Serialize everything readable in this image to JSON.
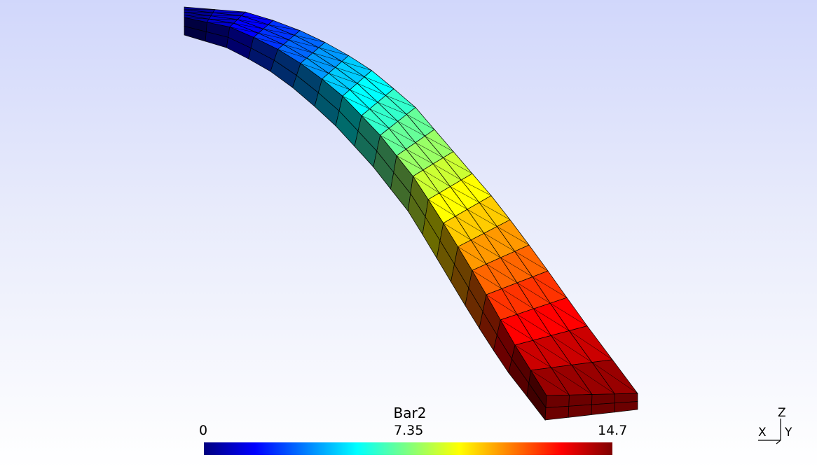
{
  "legend": {
    "title": "Bar2",
    "min_label": "0",
    "mid_label": "7.35",
    "max_label": "14.7",
    "colormap": [
      "#00007f",
      "#0000ff",
      "#007fff",
      "#00ffff",
      "#7fff7f",
      "#ffff00",
      "#ff7f00",
      "#ff0000",
      "#7f0000"
    ]
  },
  "axes": {
    "z_label": "Z",
    "x_label": "X",
    "y_label": "Y"
  },
  "mesh": {
    "length_elements": 20,
    "width_elements": 4,
    "thickness_elements": 2
  },
  "colors": {
    "background_top": "#d1d7fb",
    "background_bottom": "#ffffff",
    "edge_color": "#000000"
  }
}
